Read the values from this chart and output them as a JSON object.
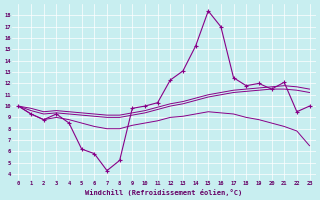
{
  "xlabel": "Windchill (Refroidissement éolien,°C)",
  "bg_color": "#c8eef0",
  "line_color": "#880088",
  "ylim": [
    3.5,
    19.0
  ],
  "xlim": [
    -0.5,
    23.5
  ],
  "yticks": [
    4,
    5,
    6,
    7,
    8,
    9,
    10,
    11,
    12,
    13,
    14,
    15,
    16,
    17,
    18
  ],
  "xticks": [
    0,
    1,
    2,
    3,
    4,
    5,
    6,
    7,
    8,
    9,
    10,
    11,
    12,
    13,
    14,
    15,
    16,
    17,
    18,
    19,
    20,
    21,
    22,
    23
  ],
  "s1_x": [
    0,
    1,
    2,
    3,
    4,
    5,
    6,
    7,
    8,
    9,
    10,
    11,
    12,
    13,
    14,
    15,
    16,
    17,
    18,
    19,
    20,
    21,
    22,
    23
  ],
  "s1_y": [
    10.0,
    9.3,
    8.8,
    9.3,
    8.5,
    6.2,
    5.8,
    4.3,
    5.2,
    9.8,
    10.0,
    10.3,
    12.3,
    13.1,
    15.3,
    18.4,
    17.0,
    12.5,
    11.8,
    12.0,
    11.5,
    12.1,
    9.5,
    10.0
  ],
  "s2_x": [
    0,
    1,
    2,
    3,
    4,
    5,
    6,
    7,
    8,
    9,
    10,
    11,
    12,
    13,
    14,
    15,
    16,
    17,
    18,
    19,
    20,
    21,
    22,
    23
  ],
  "s2_y": [
    10.0,
    9.8,
    9.5,
    9.6,
    9.5,
    9.4,
    9.3,
    9.2,
    9.2,
    9.4,
    9.6,
    9.9,
    10.2,
    10.4,
    10.7,
    11.0,
    11.2,
    11.4,
    11.5,
    11.6,
    11.7,
    11.8,
    11.7,
    11.5
  ],
  "s3_x": [
    0,
    1,
    2,
    3,
    4,
    5,
    6,
    7,
    8,
    9,
    10,
    11,
    12,
    13,
    14,
    15,
    16,
    17,
    18,
    19,
    20,
    21,
    22,
    23
  ],
  "s3_y": [
    10.0,
    9.6,
    9.3,
    9.4,
    9.3,
    9.2,
    9.1,
    9.0,
    9.0,
    9.2,
    9.4,
    9.7,
    10.0,
    10.2,
    10.5,
    10.8,
    11.0,
    11.2,
    11.3,
    11.4,
    11.5,
    11.5,
    11.4,
    11.2
  ],
  "s4_x": [
    0,
    1,
    2,
    3,
    4,
    5,
    6,
    7,
    8,
    9,
    10,
    11,
    12,
    13,
    14,
    15,
    16,
    17,
    18,
    19,
    20,
    21,
    22,
    23
  ],
  "s4_y": [
    10.0,
    9.3,
    8.8,
    9.0,
    8.8,
    8.5,
    8.2,
    8.0,
    8.0,
    8.3,
    8.5,
    8.7,
    9.0,
    9.1,
    9.3,
    9.5,
    9.4,
    9.3,
    9.0,
    8.8,
    8.5,
    8.2,
    7.8,
    6.5
  ]
}
